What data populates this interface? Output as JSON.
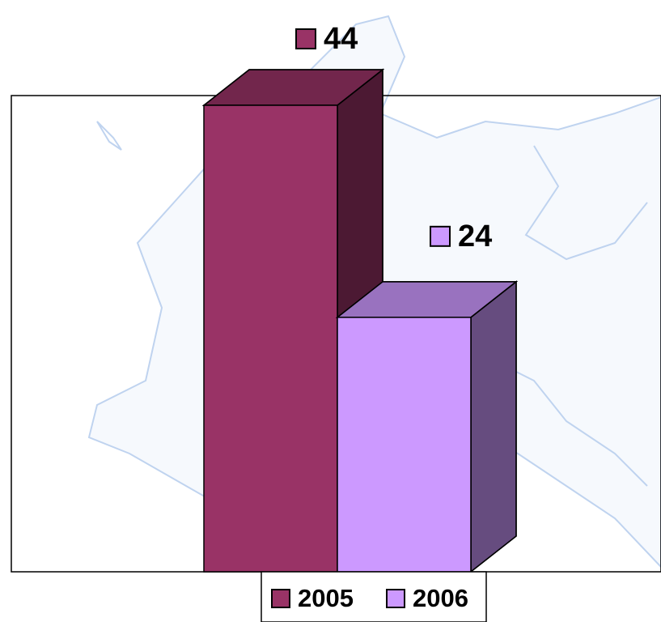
{
  "chart_data": {
    "type": "bar",
    "series": [
      {
        "name": "2005",
        "color": "#993366",
        "values": [
          44
        ]
      },
      {
        "name": "2006",
        "color": "#cc99ff",
        "values": [
          24
        ]
      }
    ],
    "legend": "bottom"
  }
}
